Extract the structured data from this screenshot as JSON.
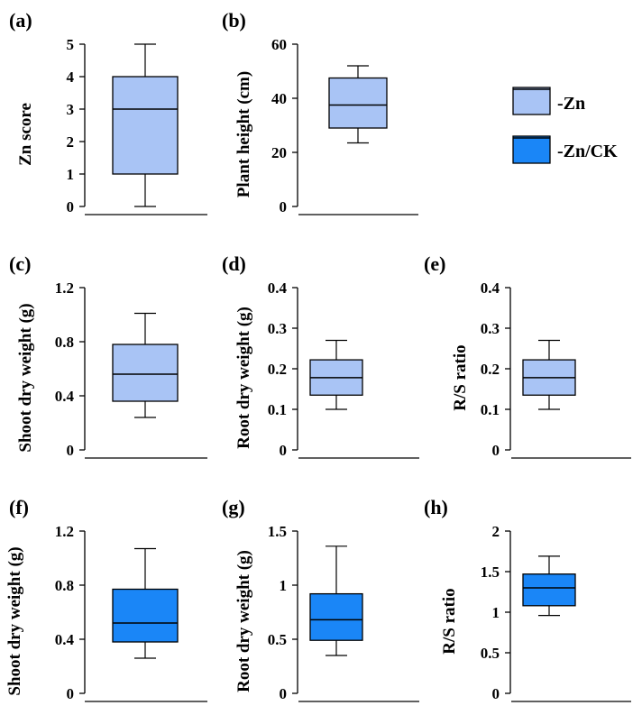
{
  "legend": {
    "items": [
      {
        "label": "-Zn",
        "color": "#a9c4f5"
      },
      {
        "label": "-Zn/CK",
        "color": "#1a86f7"
      }
    ]
  },
  "chart_data": [
    {
      "panel": "(a)",
      "type": "box",
      "ylabel": "Zn score",
      "ylim": [
        0,
        5
      ],
      "ticks": [
        0,
        1,
        2,
        3,
        4,
        5
      ],
      "tick_labels": [
        "0",
        "1",
        "2",
        "3",
        "4",
        "5"
      ],
      "stats": {
        "min": 0,
        "q1": 1,
        "median": 3,
        "q3": 4,
        "max": 5
      },
      "color": "#a9c4f5"
    },
    {
      "panel": "(b)",
      "type": "box",
      "ylabel": "Plant height (cm)",
      "ylim": [
        0,
        60
      ],
      "ticks": [
        0,
        20,
        40,
        60
      ],
      "tick_labels": [
        "0",
        "20",
        "40",
        "60"
      ],
      "stats": {
        "min": 23.5,
        "q1": 29,
        "median": 37.5,
        "q3": 47.5,
        "max": 52
      },
      "color": "#a9c4f5"
    },
    {
      "panel": "(c)",
      "type": "box",
      "ylabel": "Shoot dry weight (g)",
      "ylim": [
        0,
        1.2
      ],
      "ticks": [
        0,
        0.4,
        0.8,
        1.2
      ],
      "tick_labels": [
        "0",
        "0.4",
        "0.8",
        "1.2"
      ],
      "stats": {
        "min": 0.24,
        "q1": 0.36,
        "median": 0.56,
        "q3": 0.78,
        "max": 1.01
      },
      "color": "#a9c4f5"
    },
    {
      "panel": "(d)",
      "type": "box",
      "ylabel": "Root dry weight (g)",
      "ylim": [
        0,
        0.4
      ],
      "ticks": [
        0,
        0.1,
        0.2,
        0.3,
        0.4
      ],
      "tick_labels": [
        "0",
        "0.1",
        "0.2",
        "0.3",
        "0.4"
      ],
      "stats": {
        "min": 0.1,
        "q1": 0.135,
        "median": 0.178,
        "q3": 0.222,
        "max": 0.27
      },
      "color": "#a9c4f5"
    },
    {
      "panel": "(e)",
      "type": "box",
      "ylabel": "R/S ratio",
      "ylim": [
        0,
        0.4
      ],
      "ticks": [
        0,
        0.1,
        0.2,
        0.3,
        0.4
      ],
      "tick_labels": [
        "0",
        "0.1",
        "0.2",
        "0.3",
        "0.4"
      ],
      "stats": {
        "min": 0.1,
        "q1": 0.135,
        "median": 0.178,
        "q3": 0.222,
        "max": 0.27
      },
      "color": "#a9c4f5"
    },
    {
      "panel": "(f)",
      "type": "box",
      "ylabel": "Shoot dry weight (g)",
      "ylim": [
        0,
        1.2
      ],
      "ticks": [
        0,
        0.4,
        0.8,
        1.2
      ],
      "tick_labels": [
        "0",
        "0.4",
        "0.8",
        "1.2"
      ],
      "stats": {
        "min": 0.26,
        "q1": 0.38,
        "median": 0.52,
        "q3": 0.77,
        "max": 1.07
      },
      "color": "#1a86f7"
    },
    {
      "panel": "(g)",
      "type": "box",
      "ylabel": "Root dry weight (g)",
      "ylim": [
        0,
        1.5
      ],
      "ticks": [
        0,
        0.5,
        1,
        1.5
      ],
      "tick_labels": [
        "0",
        "0.5",
        "1",
        "1.5"
      ],
      "stats": {
        "min": 0.35,
        "q1": 0.49,
        "median": 0.68,
        "q3": 0.92,
        "max": 1.36
      },
      "color": "#1a86f7"
    },
    {
      "panel": "(h)",
      "type": "box",
      "ylabel": "R/S ratio",
      "ylim": [
        0,
        2
      ],
      "ticks": [
        0,
        0.5,
        1,
        1.5,
        2
      ],
      "tick_labels": [
        "0",
        "0.5",
        "1",
        "1.5",
        "2"
      ],
      "stats": {
        "min": 0.96,
        "q1": 1.08,
        "median": 1.3,
        "q3": 1.47,
        "max": 1.69
      },
      "color": "#1a86f7"
    }
  ]
}
